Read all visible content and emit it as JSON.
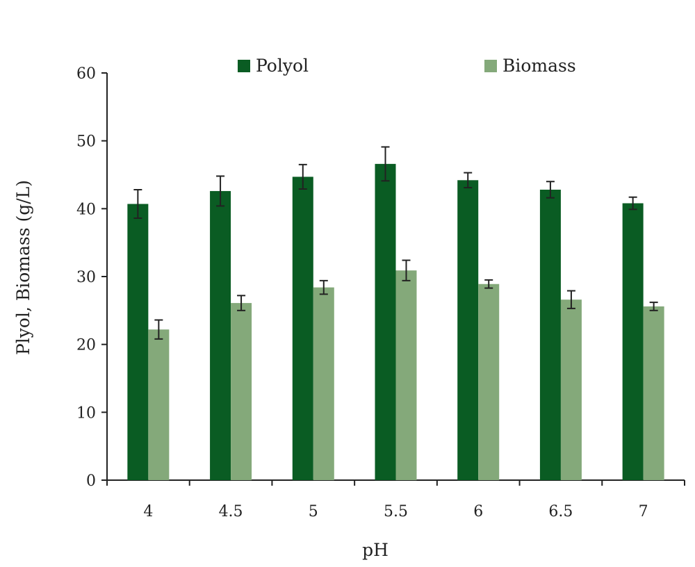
{
  "chart_data": {
    "type": "bar",
    "xlabel": "pH",
    "ylabel": "Plyol, Biomass (g/L)",
    "categories": [
      "4",
      "4.5",
      "5",
      "5.5",
      "6",
      "6.5",
      "7"
    ],
    "ylim": [
      0,
      60
    ],
    "yticks": [
      "0",
      "10",
      "20",
      "30",
      "40",
      "50",
      "60"
    ],
    "series": [
      {
        "name": "Polyol",
        "color": "#0a5c23",
        "values": [
          40.7,
          42.6,
          44.7,
          46.6,
          44.2,
          42.8,
          40.8
        ],
        "errors": [
          2.1,
          2.2,
          1.8,
          2.5,
          1.1,
          1.2,
          0.9
        ]
      },
      {
        "name": "Biomass",
        "color": "#84a97a",
        "values": [
          22.2,
          26.1,
          28.4,
          30.9,
          28.9,
          26.6,
          25.6
        ],
        "errors": [
          1.4,
          1.1,
          1.0,
          1.5,
          0.6,
          1.3,
          0.6
        ]
      }
    ],
    "legend": "top",
    "grid": false
  }
}
